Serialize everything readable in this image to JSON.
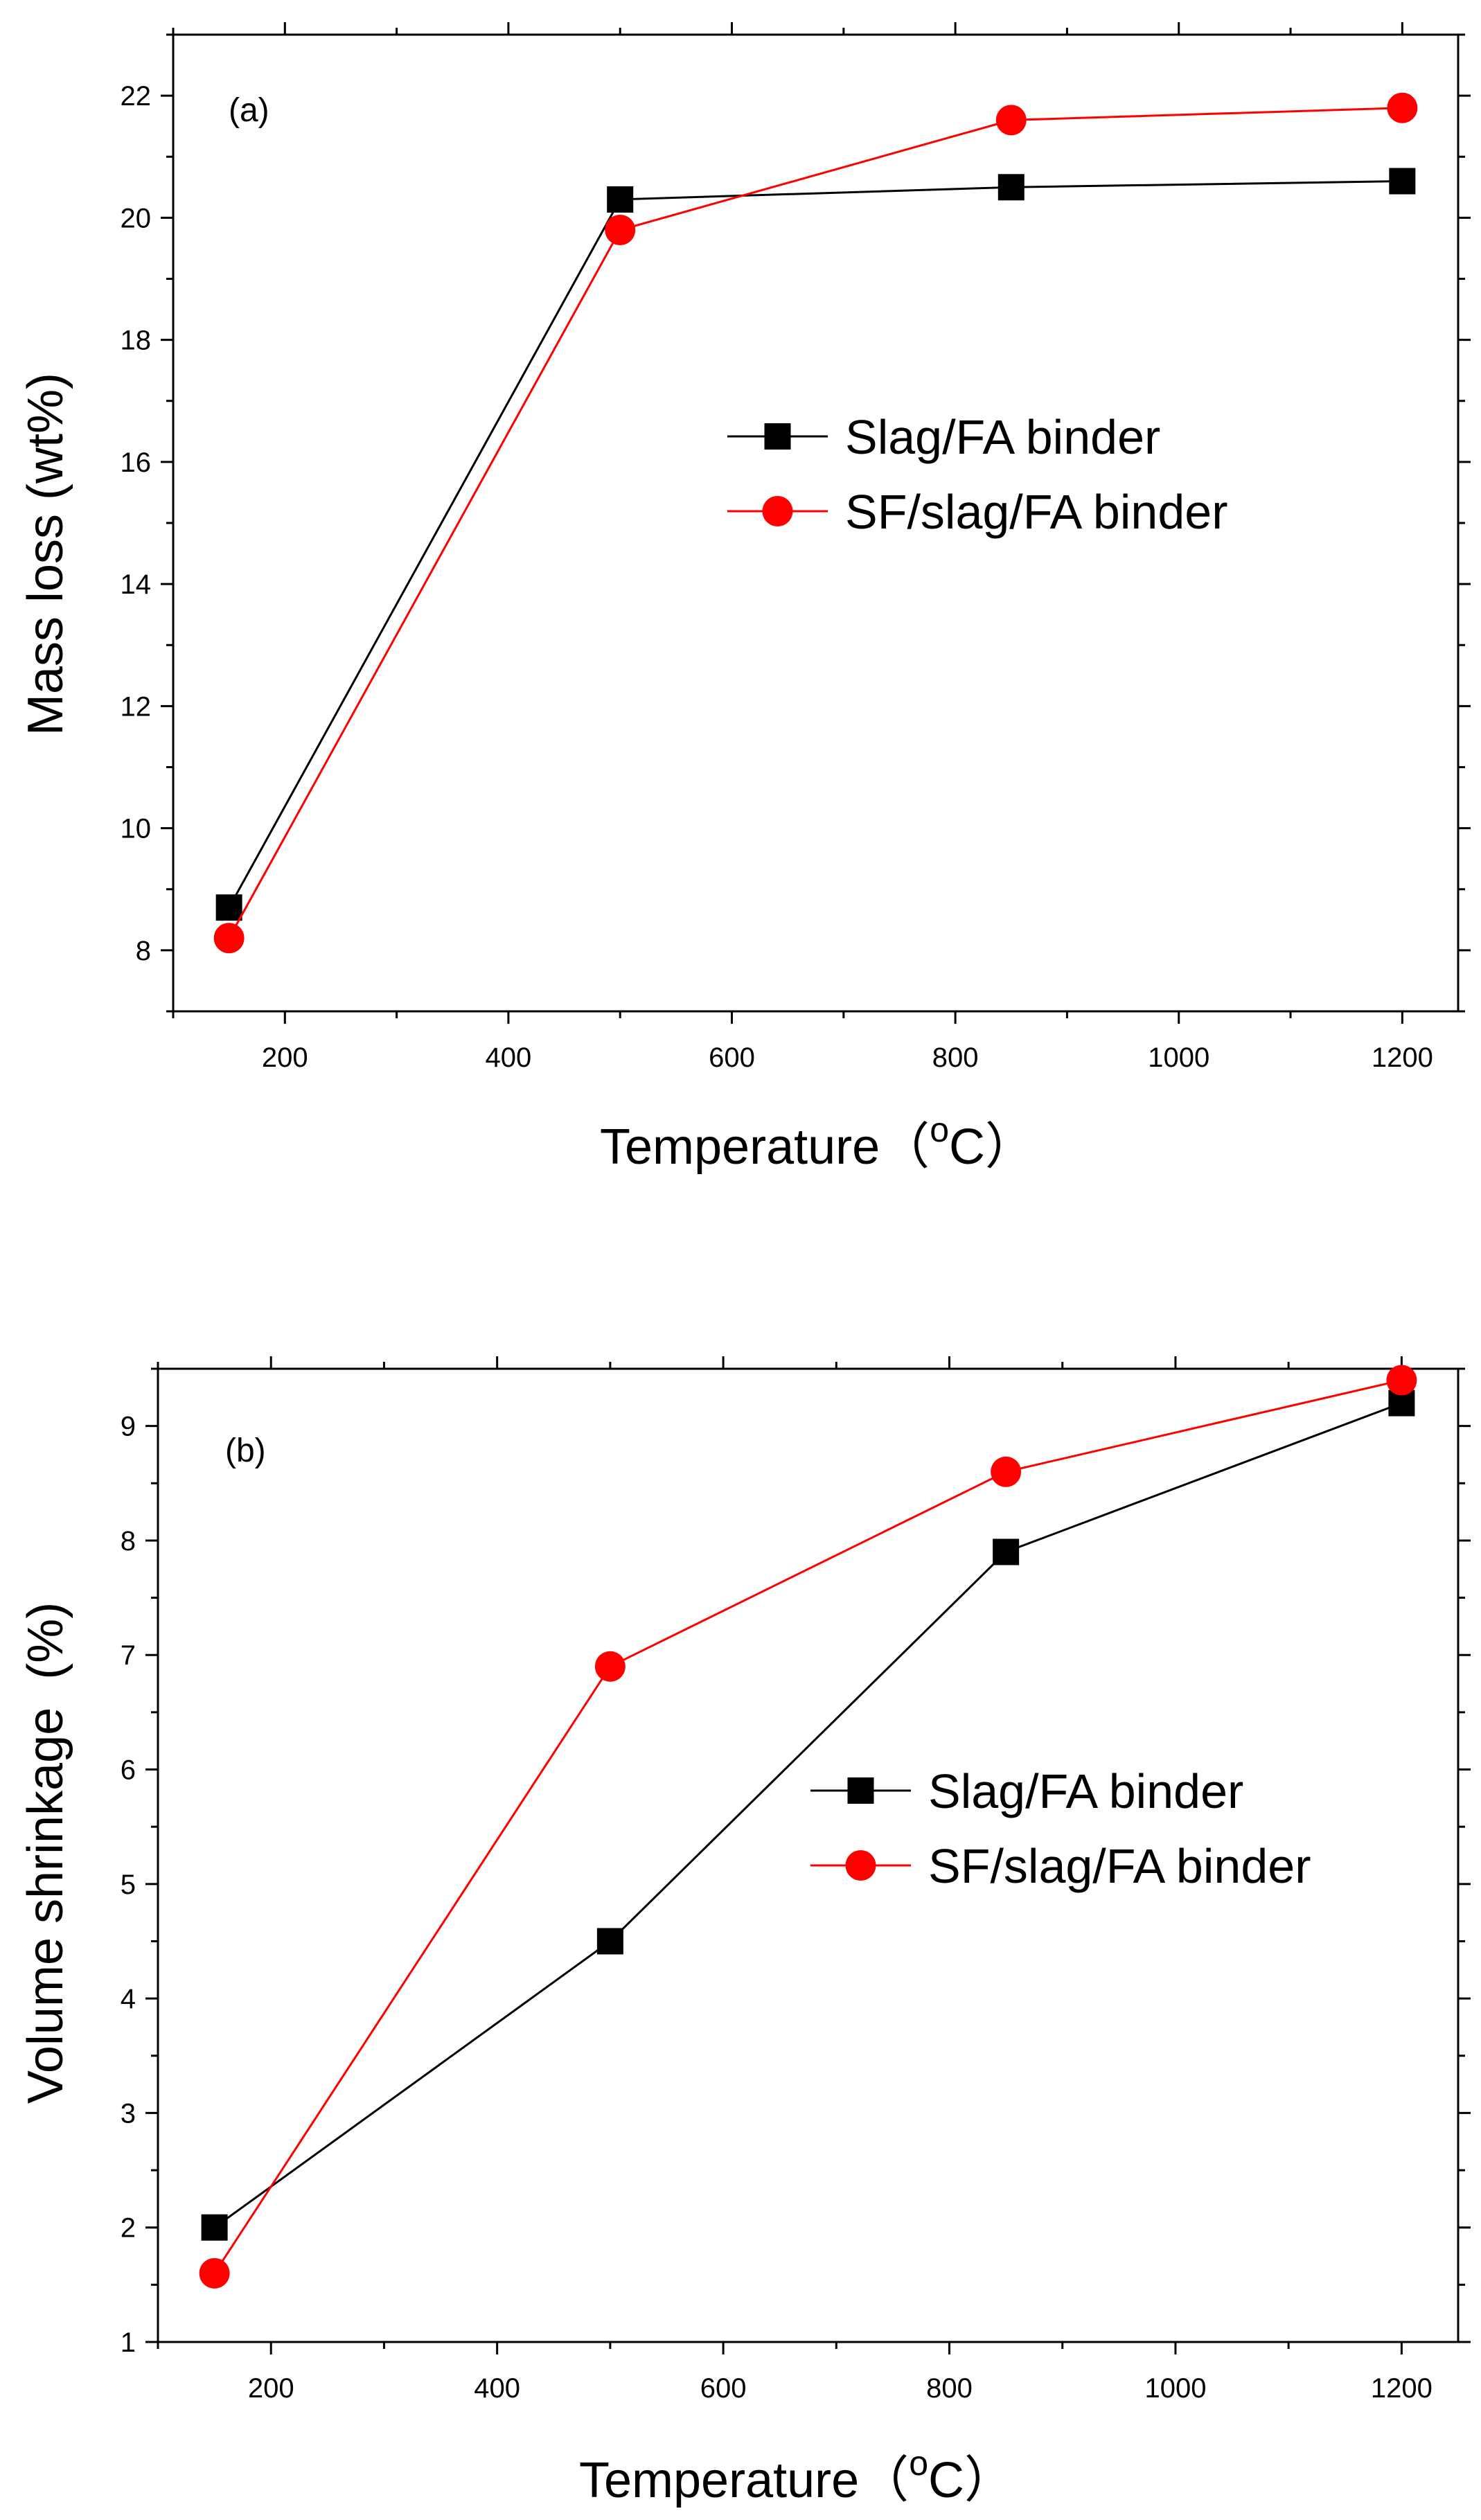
{
  "colors": {
    "series_black": "#000000",
    "series_red": "#ff0000",
    "background": "#ffffff"
  },
  "chart_data": [
    {
      "id": "a",
      "type": "line",
      "panel_label": "(a)",
      "title": "",
      "xlabel": "Temperature（",
      "xlabel_super": "o",
      "xlabel_suffix": "C）",
      "ylabel": "Mass loss (wt%)",
      "xlim": [
        100,
        1250
      ],
      "ylim": [
        7,
        23
      ],
      "xticks": [
        200,
        400,
        600,
        800,
        1000,
        1200
      ],
      "yticks": [
        8,
        10,
        12,
        14,
        16,
        18,
        20,
        22
      ],
      "grid": false,
      "legend_position": "center-right",
      "x": [
        150,
        500,
        850,
        1200
      ],
      "series": [
        {
          "name": "Slag/FA binder",
          "marker": "square",
          "color": "#000000",
          "values": [
            8.7,
            20.3,
            20.5,
            20.6
          ]
        },
        {
          "name": "SF/slag/FA binder",
          "marker": "circle",
          "color": "#ff0000",
          "values": [
            8.2,
            19.8,
            21.6,
            21.8
          ]
        }
      ]
    },
    {
      "id": "b",
      "type": "line",
      "panel_label": "(b)",
      "title": "",
      "xlabel": "Temperature（",
      "xlabel_super": "o",
      "xlabel_suffix": "C）",
      "ylabel": "Volume shrinkage  (%)",
      "xlim": [
        100,
        1250
      ],
      "ylim": [
        1,
        9.5
      ],
      "xticks": [
        200,
        400,
        600,
        800,
        1000,
        1200
      ],
      "yticks": [
        1,
        2,
        3,
        4,
        5,
        6,
        7,
        8,
        9
      ],
      "grid": false,
      "legend_position": "center-right",
      "x": [
        150,
        500,
        850,
        1200
      ],
      "series": [
        {
          "name": "Slag/FA binder",
          "marker": "square",
          "color": "#000000",
          "values": [
            2.0,
            4.5,
            7.9,
            9.2
          ]
        },
        {
          "name": "SF/slag/FA binder",
          "marker": "circle",
          "color": "#ff0000",
          "values": [
            1.6,
            6.9,
            8.6,
            9.4
          ]
        }
      ]
    }
  ]
}
